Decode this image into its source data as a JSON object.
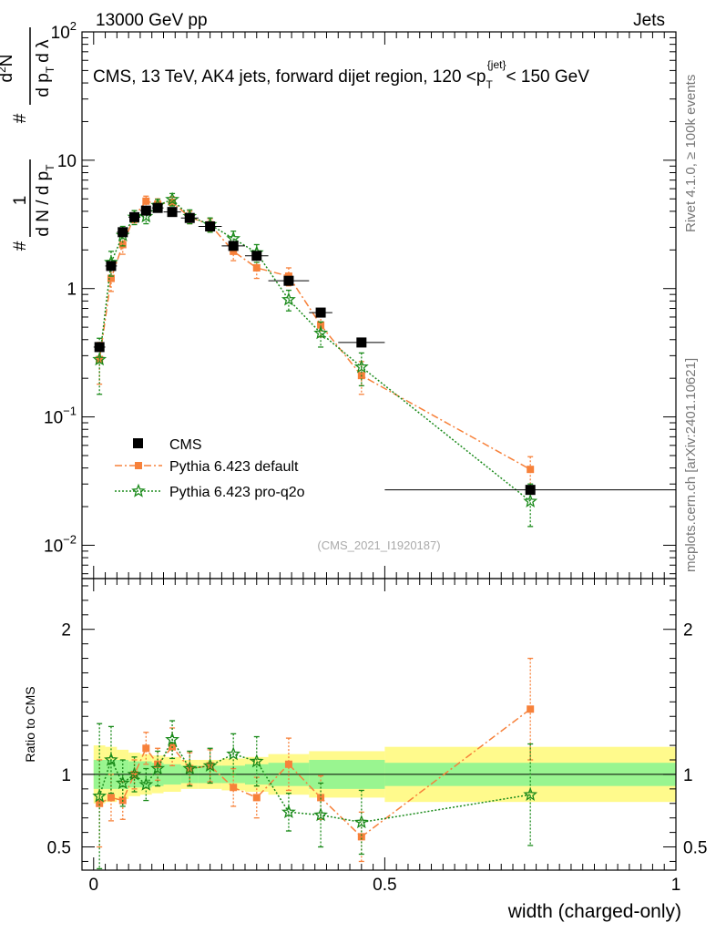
{
  "header": {
    "left": "13000 GeV pp",
    "right": "Jets",
    "title_main": "CMS, 13 TeV, AK4 jets, forward dijet region, 120 <p",
    "title_sub": "T",
    "title_sup": "{jet}",
    "title_end": "< 150 GeV"
  },
  "side": {
    "rivet": "Rivet 4.1.0, ≥ 100k events",
    "mcplots": "mcplots.cern.ch [arXiv:2401.10621]"
  },
  "watermark": "(CMS_2021_I1920187)",
  "ylabel_top": {
    "hash1": "#",
    "one": "1",
    "denom": "d N / d p",
    "denom_sub": "T",
    "hash2": "#",
    "num2": "d",
    "num2_sup": "2",
    "num2_rest": "N",
    "den2": "d p",
    "den2_sub": "T",
    "den2_rest": "d λ"
  },
  "chart_data": [
    {
      "type": "scatter",
      "panel": "main",
      "yscale": "log",
      "xlim": [
        -0.02,
        1.0
      ],
      "ylim": [
        0.0055,
        100
      ],
      "yticks": [
        {
          "value": 0.01,
          "base": "10",
          "exp": "−2"
        },
        {
          "value": 0.1,
          "base": "10",
          "exp": "−1"
        },
        {
          "value": 1,
          "base": "1",
          "exp": ""
        },
        {
          "value": 10,
          "base": "10",
          "exp": ""
        },
        {
          "value": 100,
          "base": "10",
          "exp": "2"
        }
      ],
      "legend": [
        {
          "name": "CMS"
        },
        {
          "name": "Pythia 6.423 default"
        },
        {
          "name": "Pythia 6.423 pro-q2o"
        }
      ],
      "series": [
        {
          "name": "CMS",
          "color": "#000000",
          "x": [
            0.01,
            0.03,
            0.05,
            0.07,
            0.09,
            0.11,
            0.135,
            0.165,
            0.2,
            0.24,
            0.28,
            0.335,
            0.39,
            0.46,
            0.75
          ],
          "xerr": [
            0.01,
            0.01,
            0.01,
            0.01,
            0.01,
            0.01,
            0.015,
            0.015,
            0.02,
            0.02,
            0.02,
            0.035,
            0.02,
            0.04,
            0.25
          ],
          "y": [
            0.35,
            1.5,
            2.75,
            3.6,
            4.05,
            4.25,
            3.95,
            3.55,
            3.05,
            2.15,
            1.8,
            1.15,
            0.65,
            0.38,
            0.027
          ]
        },
        {
          "name": "Pythia 6.423 default",
          "color": "#f7813a",
          "x": [
            0.01,
            0.03,
            0.05,
            0.07,
            0.09,
            0.11,
            0.135,
            0.165,
            0.2,
            0.24,
            0.28,
            0.335,
            0.39,
            0.46,
            0.75
          ],
          "y": [
            0.28,
            1.2,
            2.2,
            3.65,
            4.8,
            4.55,
            4.7,
            3.6,
            3.15,
            1.95,
            1.45,
            1.25,
            0.52,
            0.21,
            0.039
          ],
          "yerr": [
            0.1,
            0.25,
            0.35,
            0.4,
            0.45,
            0.45,
            0.5,
            0.4,
            0.35,
            0.3,
            0.25,
            0.2,
            0.1,
            0.06,
            0.01
          ]
        },
        {
          "name": "Pythia 6.423 pro-q2o",
          "color": "#1a8a1a",
          "x": [
            0.01,
            0.03,
            0.05,
            0.07,
            0.09,
            0.11,
            0.135,
            0.165,
            0.2,
            0.24,
            0.28,
            0.335,
            0.39,
            0.46,
            0.75
          ],
          "y": [
            0.28,
            1.6,
            2.6,
            3.6,
            3.65,
            4.45,
            4.95,
            3.65,
            3.15,
            2.45,
            1.9,
            0.82,
            0.45,
            0.245,
            0.022
          ],
          "yerr": [
            0.13,
            0.35,
            0.45,
            0.45,
            0.45,
            0.5,
            0.55,
            0.45,
            0.4,
            0.35,
            0.3,
            0.15,
            0.1,
            0.07,
            0.008
          ]
        }
      ]
    },
    {
      "type": "scatter",
      "panel": "ratio",
      "ylabel": "Ratio to CMS",
      "xlabel": "width (charged-only)",
      "xlim": [
        -0.02,
        1.0
      ],
      "ylim": [
        0.34,
        2.35
      ],
      "yticks": [
        {
          "value": 0.5,
          "label": "0.5"
        },
        {
          "value": 1,
          "label": "1"
        },
        {
          "value": 2,
          "label": "2"
        }
      ],
      "xticks": [
        {
          "value": 0,
          "label": "0"
        },
        {
          "value": 0.5,
          "label": "0.5"
        },
        {
          "value": 1,
          "label": "1"
        }
      ],
      "bands": [
        {
          "x0": 0.0,
          "x1": 0.02,
          "inner": 0.1,
          "outer": 0.2
        },
        {
          "x0": 0.02,
          "x1": 0.04,
          "inner": 0.1,
          "outer": 0.19
        },
        {
          "x0": 0.04,
          "x1": 0.06,
          "inner": 0.1,
          "outer": 0.17
        },
        {
          "x0": 0.06,
          "x1": 0.08,
          "inner": 0.09,
          "outer": 0.15
        },
        {
          "x0": 0.08,
          "x1": 0.1,
          "inner": 0.09,
          "outer": 0.14
        },
        {
          "x0": 0.1,
          "x1": 0.12,
          "inner": 0.08,
          "outer": 0.13
        },
        {
          "x0": 0.12,
          "x1": 0.15,
          "inner": 0.07,
          "outer": 0.12
        },
        {
          "x0": 0.15,
          "x1": 0.18,
          "inner": 0.06,
          "outer": 0.1
        },
        {
          "x0": 0.18,
          "x1": 0.22,
          "inner": 0.06,
          "outer": 0.1
        },
        {
          "x0": 0.22,
          "x1": 0.26,
          "inner": 0.06,
          "outer": 0.11
        },
        {
          "x0": 0.26,
          "x1": 0.3,
          "inner": 0.07,
          "outer": 0.12
        },
        {
          "x0": 0.3,
          "x1": 0.37,
          "inner": 0.08,
          "outer": 0.14
        },
        {
          "x0": 0.37,
          "x1": 0.5,
          "inner": 0.1,
          "outer": 0.16
        },
        {
          "x0": 0.5,
          "x1": 1.0,
          "inner": 0.08,
          "outer": 0.19
        }
      ],
      "series": [
        {
          "name": "Pythia 6.423 default",
          "color": "#f7813a",
          "x": [
            0.01,
            0.03,
            0.05,
            0.07,
            0.09,
            0.11,
            0.135,
            0.165,
            0.2,
            0.24,
            0.28,
            0.335,
            0.39,
            0.46,
            0.75
          ],
          "y": [
            0.8,
            0.84,
            0.82,
            1.0,
            1.18,
            1.07,
            1.19,
            1.04,
            1.06,
            0.91,
            0.84,
            1.07,
            0.84,
            0.57,
            1.45
          ],
          "yerr": [
            0.3,
            0.16,
            0.13,
            0.1,
            0.11,
            0.11,
            0.13,
            0.11,
            0.11,
            0.13,
            0.14,
            0.18,
            0.15,
            0.17,
            0.35
          ]
        },
        {
          "name": "Pythia 6.423 pro-q2o",
          "color": "#1a8a1a",
          "x": [
            0.01,
            0.03,
            0.05,
            0.07,
            0.09,
            0.11,
            0.135,
            0.165,
            0.2,
            0.24,
            0.28,
            0.335,
            0.39,
            0.46,
            0.75
          ],
          "y": [
            0.85,
            1.1,
            0.94,
            1.0,
            0.93,
            1.04,
            1.24,
            1.04,
            1.06,
            1.14,
            1.09,
            0.74,
            0.72,
            0.67,
            0.86
          ],
          "yerr": [
            0.5,
            0.23,
            0.16,
            0.12,
            0.11,
            0.12,
            0.13,
            0.12,
            0.12,
            0.14,
            0.17,
            0.13,
            0.22,
            0.22,
            0.35
          ]
        }
      ]
    }
  ]
}
